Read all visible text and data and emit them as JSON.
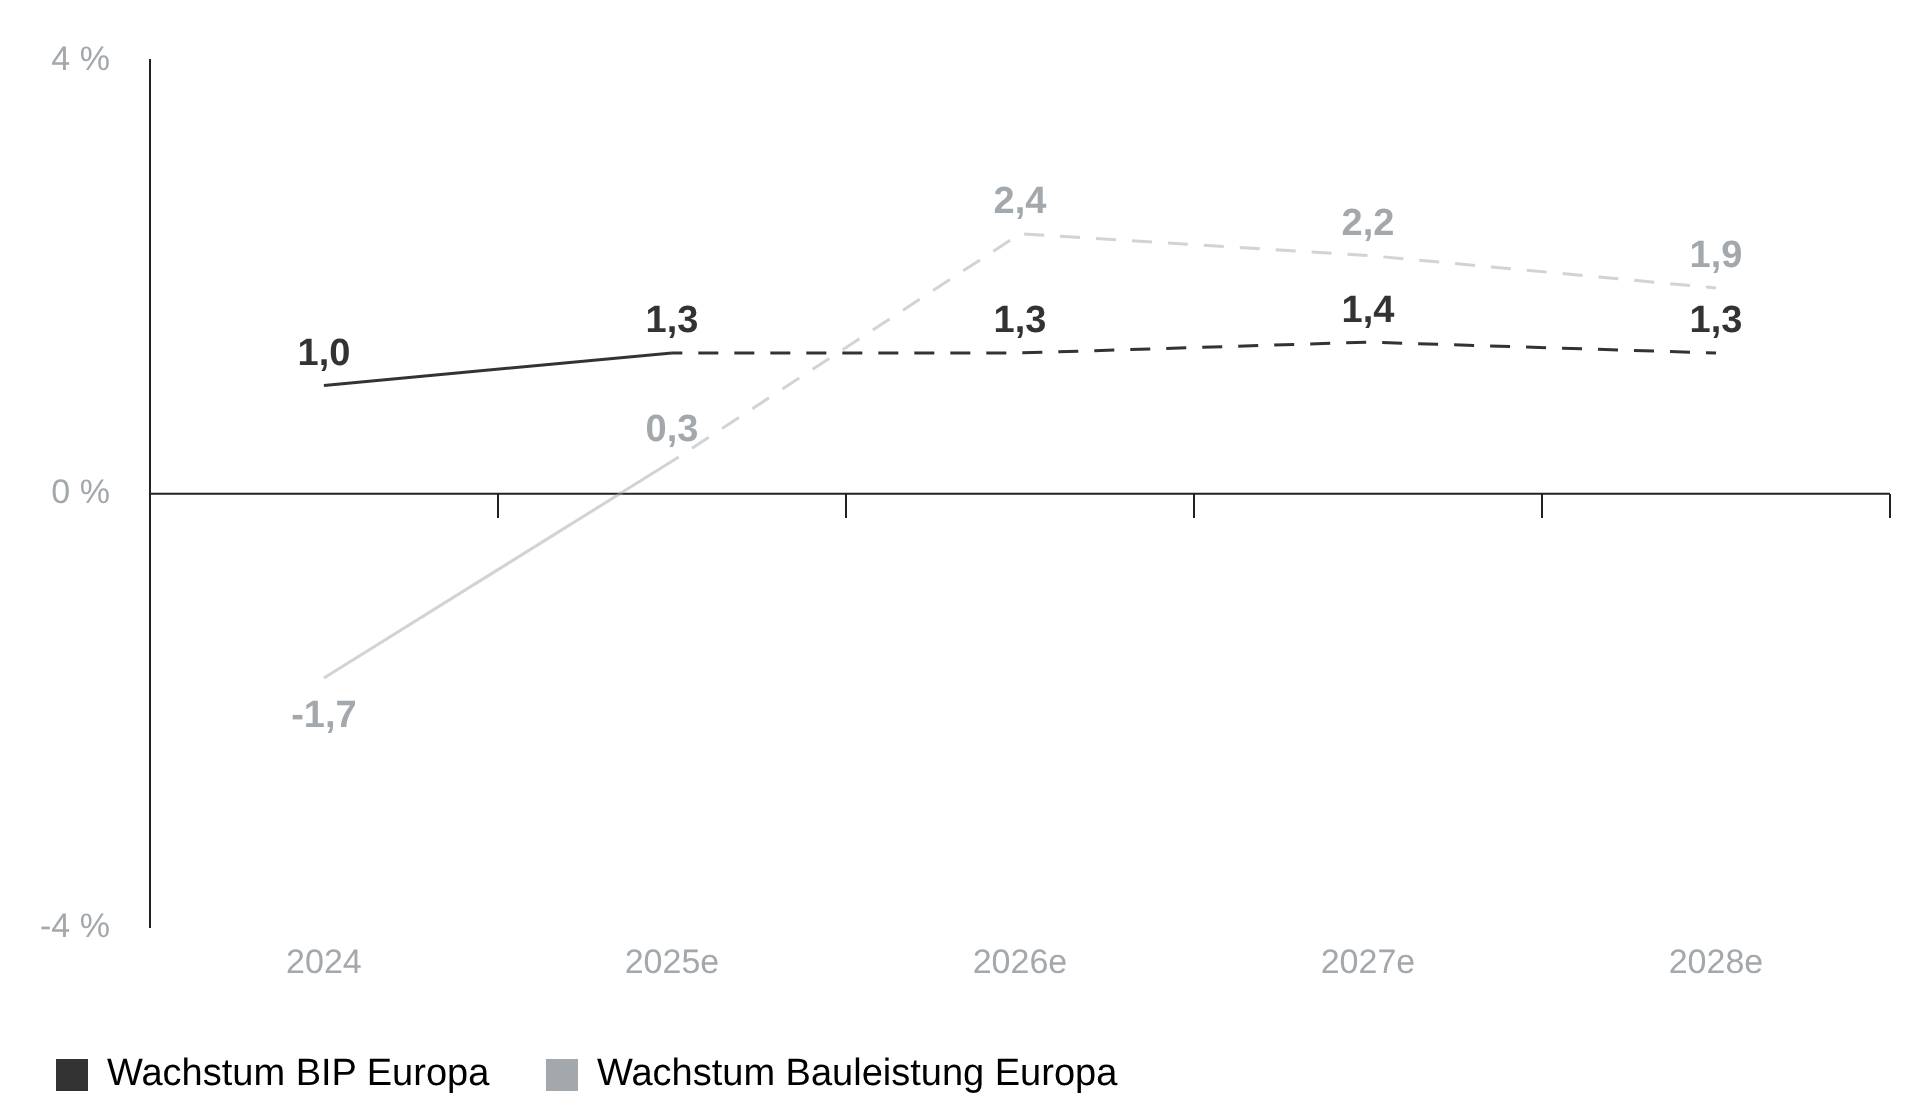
{
  "chart_data": {
    "type": "line",
    "categories": [
      "2024",
      "2025e",
      "2026e",
      "2027e",
      "2028e"
    ],
    "series": [
      {
        "name": "Wachstum BIP Europa",
        "color": "#333333",
        "values": [
          1.0,
          1.3,
          null,
          null,
          null
        ],
        "value_labels": [
          "1,0",
          "1,3",
          null,
          null,
          null
        ],
        "line_style": "solid"
      },
      {
        "color": "#333333",
        "values": [
          null,
          1.3,
          1.3,
          1.4,
          1.3
        ],
        "value_labels": [
          null,
          null,
          "1,3",
          "1,4",
          "1,3"
        ],
        "line_style": "dashed"
      },
      {
        "name": "Wachstum Bauleistung Europa",
        "color": "#a3a8ad",
        "values": [
          -1.7,
          0.3,
          null,
          null,
          null
        ],
        "value_labels": [
          "-1,7",
          "0,3",
          null,
          null,
          null
        ],
        "line_style": "solid"
      },
      {
        "color": "#a3a8ad",
        "values": [
          null,
          0.3,
          2.4,
          2.2,
          1.9
        ],
        "value_labels": [
          null,
          null,
          "2,4",
          "2,2",
          "1,9"
        ],
        "line_style": "dashed"
      }
    ],
    "ylim": [
      -4,
      4
    ],
    "yticks": [
      {
        "value": 4,
        "label": "4 %"
      },
      {
        "value": 0,
        "label": "0 %"
      },
      {
        "value": -4,
        "label": "-4 %"
      }
    ],
    "ref_lines": [
      {
        "axis": "y",
        "value": 0,
        "color": "#222222"
      }
    ],
    "grid": false,
    "legend": "bottom left",
    "marker": "none"
  }
}
